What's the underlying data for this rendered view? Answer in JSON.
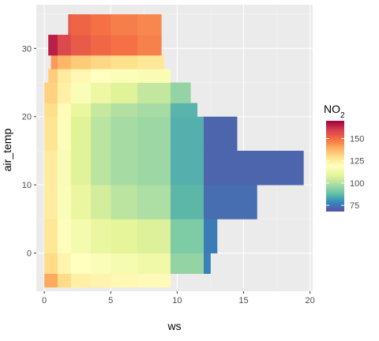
{
  "chart_data": {
    "type": "heatmap",
    "title": "",
    "xlabel": "ws",
    "ylabel": "air_temp",
    "xlim": [
      -0.6,
      20.2
    ],
    "ylim": [
      -5.6,
      36.4
    ],
    "x_ticks": [
      0,
      5,
      10,
      15,
      20
    ],
    "y_ticks": [
      0,
      10,
      20,
      30
    ],
    "grid": true,
    "legend": {
      "title_main": "NO",
      "title_sub": "2",
      "position": "right",
      "range": [
        68,
        170
      ],
      "ticks": [
        75,
        100,
        125,
        150
      ],
      "palette": [
        "#5e4fa2",
        "#3288bd",
        "#66c2a5",
        "#abdda4",
        "#e6f598",
        "#ffffbf",
        "#fee08b",
        "#fdae61",
        "#f46d43",
        "#d53e4f",
        "#9e0142"
      ]
    },
    "surface": {
      "description_of_axes": "rows are air_temp bands (y0 to y1); x_range gives covered ws extent; no2 is NO2 at the listed ws knots",
      "ws_knots": [
        0,
        1,
        2,
        3.5,
        5,
        7,
        9.5,
        12,
        20
      ],
      "rows": [
        {
          "y0": -5,
          "y1": -3,
          "x_range": [
            0,
            9.5
          ],
          "no2": [
            145,
            135,
            125,
            123,
            122,
            121,
            120,
            120,
            120
          ]
        },
        {
          "y0": -3,
          "y1": 0,
          "x_range": [
            0,
            12.5
          ],
          "no2": [
            135,
            125,
            120,
            118,
            116,
            114,
            112,
            78,
            75
          ]
        },
        {
          "y0": 0,
          "y1": 5,
          "x_range": [
            0,
            13
          ],
          "no2": [
            132,
            122,
            117,
            112,
            110,
            108,
            106,
            78,
            74
          ]
        },
        {
          "y0": 5,
          "y1": 10,
          "x_range": [
            0,
            16
          ],
          "no2": [
            130,
            120,
            114,
            108,
            103,
            100,
            98,
            75,
            72
          ]
        },
        {
          "y0": 10,
          "y1": 15,
          "x_range": [
            0,
            19.5
          ],
          "no2": [
            130,
            120,
            112,
            104,
            99,
            97,
            96,
            74,
            70
          ]
        },
        {
          "y0": 15,
          "y1": 20,
          "x_range": [
            0,
            14.5
          ],
          "no2": [
            132,
            123,
            112,
            104,
            99,
            97,
            96,
            74,
            70
          ]
        },
        {
          "y0": 20,
          "y1": 22,
          "x_range": [
            0,
            11.5
          ],
          "no2": [
            134,
            125,
            115,
            106,
            101,
            99,
            97,
            75,
            72
          ]
        },
        {
          "y0": 22,
          "y1": 25,
          "x_range": [
            0,
            11
          ],
          "no2": [
            136,
            128,
            120,
            114,
            110,
            106,
            100,
            90,
            90
          ]
        },
        {
          "y0": 25,
          "y1": 27,
          "x_range": [
            0.3,
            9.5
          ],
          "no2": [
            138,
            128,
            123,
            120,
            118,
            117,
            115,
            115,
            115
          ]
        },
        {
          "y0": 27,
          "y1": 29,
          "x_range": [
            0.5,
            9
          ],
          "no2": [
            145,
            140,
            135,
            132,
            130,
            128,
            126,
            126,
            126
          ]
        },
        {
          "y0": 29,
          "y1": 32,
          "x_range": [
            0.3,
            8.8
          ],
          "no2": [
            170,
            160,
            155,
            152,
            150,
            148,
            145,
            145,
            145
          ]
        },
        {
          "y0": 32,
          "y1": 35,
          "x_range": [
            1.8,
            8.8
          ],
          "no2": [
            160,
            155,
            153,
            150,
            148,
            146,
            145,
            145,
            145
          ]
        }
      ]
    }
  }
}
